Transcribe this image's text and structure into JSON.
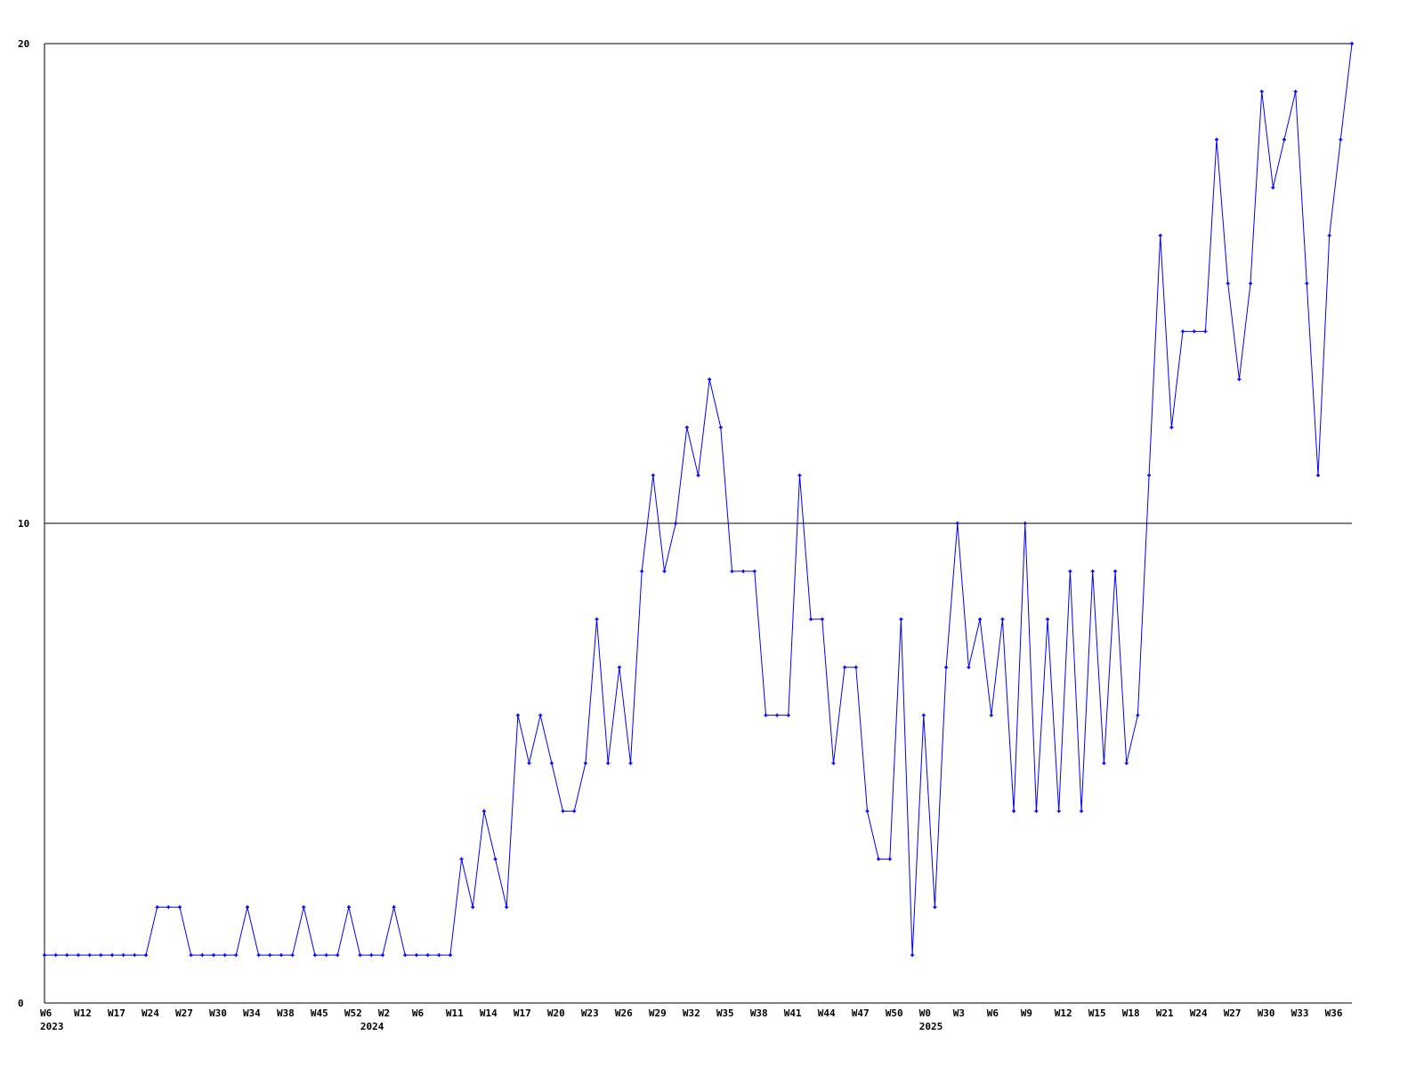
{
  "chart_data": {
    "type": "line",
    "title": "",
    "xlabel": "",
    "ylabel": "",
    "ylim": [
      0,
      20
    ],
    "yticks": [
      "0",
      "10",
      "20"
    ],
    "grid": "horizontal lines at 10 and 20",
    "legend": "none",
    "series_color": "#0000ff",
    "xtick_every_n_points": 3,
    "xtick_labels": [
      "W6",
      "W12",
      "W17",
      "W24",
      "W27",
      "W30",
      "W34",
      "W38",
      "W45",
      "W52",
      "W2",
      "W6",
      "W11",
      "W14",
      "W17",
      "W20",
      "W23",
      "W26",
      "W29",
      "W32",
      "W35",
      "W38",
      "W41",
      "W44",
      "W47",
      "W50",
      "W0",
      "W3",
      "W6",
      "W9",
      "W12",
      "W15",
      "W18",
      "W21",
      "W24",
      "W27",
      "W30",
      "W33",
      "W36"
    ],
    "year_labels": [
      {
        "label": "2023",
        "at_tick": 0
      },
      {
        "label": "2024",
        "at_tick": 10
      },
      {
        "label": "2025",
        "at_tick": 26
      }
    ],
    "series": [
      {
        "values": [
          1,
          1,
          1,
          1,
          1,
          1,
          1,
          1,
          1,
          1,
          2,
          2,
          2,
          1,
          1,
          1,
          1,
          1,
          2,
          1,
          1,
          1,
          1,
          2,
          1,
          1,
          1,
          2,
          1,
          1,
          1,
          2,
          1,
          1,
          1,
          1,
          1,
          3,
          2,
          4,
          3,
          2,
          6,
          5,
          6,
          5,
          4,
          4,
          5,
          8,
          5,
          7,
          5,
          9,
          11,
          9,
          10,
          12,
          11,
          13,
          12,
          9,
          9,
          9,
          6,
          6,
          6,
          11,
          8,
          8,
          5,
          7,
          7,
          4,
          3,
          3,
          8,
          1,
          6,
          2,
          7,
          10,
          7,
          8,
          6,
          8,
          4,
          10,
          4,
          8,
          4,
          9,
          4,
          9,
          5,
          9,
          5,
          6,
          11,
          16,
          12,
          14,
          14,
          14,
          18,
          15,
          13,
          15,
          19,
          17,
          18,
          19,
          15,
          11,
          16,
          18,
          20
        ]
      }
    ]
  }
}
